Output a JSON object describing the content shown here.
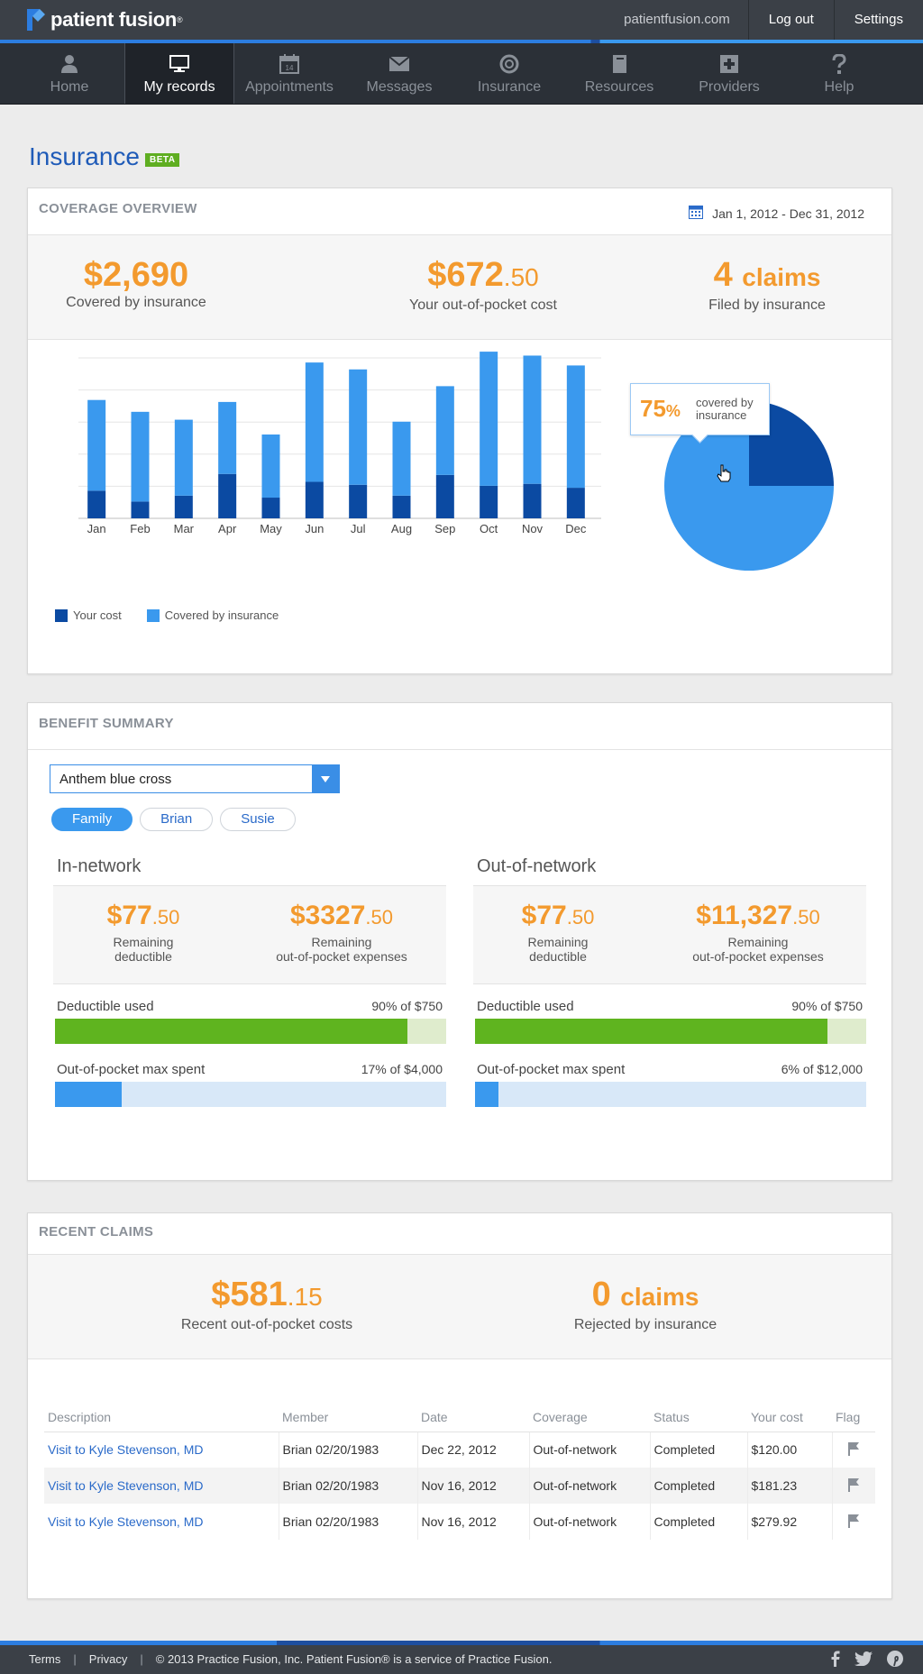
{
  "brand": {
    "name": "patient fusion",
    "reg": "®"
  },
  "top_links": {
    "site": "patientfusion.com",
    "logout": "Log out",
    "settings": "Settings"
  },
  "nav": {
    "items": [
      {
        "label": "Home",
        "icon": "user-icon"
      },
      {
        "label": "My records",
        "icon": "monitor-icon"
      },
      {
        "label": "Appointments",
        "icon": "calendar-icon",
        "icon_text": "14"
      },
      {
        "label": "Messages",
        "icon": "envelope-icon"
      },
      {
        "label": "Insurance",
        "icon": "lifebuoy-icon"
      },
      {
        "label": "Resources",
        "icon": "book-icon"
      },
      {
        "label": "Providers",
        "icon": "medical-cross-icon"
      },
      {
        "label": "Help",
        "icon": "question-icon"
      }
    ],
    "active": "My records"
  },
  "page": {
    "title": "Insurance",
    "badge": "BETA"
  },
  "coverage": {
    "title": "COVERAGE OVERVIEW",
    "date_range": "Jan 1, 2012 - Dec 31, 2012",
    "covered": {
      "value": "$2,690",
      "label": "Covered by insurance"
    },
    "oop": {
      "dollars": "$672",
      "cents": ".50",
      "label": "Your out-of-pocket cost"
    },
    "claims": {
      "count": "4",
      "unit": "claims",
      "label": "Filed by insurance"
    },
    "legend": {
      "your_cost": "Your cost",
      "covered": "Covered by insurance"
    },
    "pie": {
      "percent": "75",
      "sign": "%",
      "label_line1": "covered by",
      "label_line2": "insurance"
    }
  },
  "chart_data": [
    {
      "type": "bar",
      "stacked": true,
      "categories": [
        "Jan",
        "Feb",
        "Mar",
        "Apr",
        "May",
        "Jun",
        "Jul",
        "Aug",
        "Sep",
        "Oct",
        "Nov",
        "Dec"
      ],
      "series": [
        {
          "name": "Your cost",
          "color": "#0b4aa2",
          "values": [
            28,
            17,
            23,
            45,
            21,
            37,
            34,
            23,
            44,
            33,
            35,
            31
          ]
        },
        {
          "name": "Covered by insurance",
          "color": "#3a99ee",
          "values": [
            92,
            91,
            77,
            73,
            64,
            121,
            117,
            75,
            90,
            136,
            130,
            124
          ]
        }
      ],
      "grid": true,
      "legend": "bottom-left"
    },
    {
      "type": "pie",
      "slices": [
        {
          "name": "covered by insurance",
          "value": 75,
          "color": "#3a99ee"
        },
        {
          "name": "Your cost",
          "value": 25,
          "color": "#0b4aa2"
        }
      ]
    }
  ],
  "benefits": {
    "title": "BENEFIT SUMMARY",
    "plan": "Anthem blue cross",
    "members": [
      "Family",
      "Brian",
      "Susie"
    ],
    "active_member": "Family",
    "in_network": {
      "title": "In-network",
      "deductible": {
        "dollars": "$77",
        "cents": ".50",
        "label1": "Remaining",
        "label2": "deductible"
      },
      "oop": {
        "dollars": "$3327",
        "cents": ".50",
        "label1": "Remaining",
        "label2": "out-of-pocket expenses"
      },
      "deductible_used": {
        "label": "Deductible used",
        "value": "90% of $750",
        "fraction": 0.9
      },
      "oop_spent": {
        "label": "Out-of-pocket max spent",
        "value": "17% of $4,000",
        "fraction": 0.17
      }
    },
    "out_network": {
      "title": "Out-of-network",
      "deductible": {
        "dollars": "$77",
        "cents": ".50",
        "label1": "Remaining",
        "label2": "deductible"
      },
      "oop": {
        "dollars": "$11,327",
        "cents": ".50",
        "label1": "Remaining",
        "label2": "out-of-pocket expenses"
      },
      "deductible_used": {
        "label": "Deductible used",
        "value": "90% of $750",
        "fraction": 0.9
      },
      "oop_spent": {
        "label": "Out-of-pocket max spent",
        "value": "6% of $12,000",
        "fraction": 0.06
      }
    },
    "colors": {
      "deductible": "#5fb41f",
      "deductible_track": "#dfeccd",
      "oop": "#3a99ee",
      "oop_track": "#d8e8f8"
    }
  },
  "claims": {
    "title": "RECENT CLAIMS",
    "oop": {
      "dollars": "$581",
      "cents": ".15",
      "label": "Recent out-of-pocket costs"
    },
    "rejected": {
      "count": "0",
      "unit": "claims",
      "label": "Rejected by insurance"
    },
    "columns": [
      "Description",
      "Member",
      "Date",
      "Coverage",
      "Status",
      "Your cost",
      "Flag"
    ],
    "rows": [
      {
        "description": "Visit to Kyle Stevenson, MD",
        "member": "Brian 02/20/1983",
        "date": "Dec 22, 2012",
        "coverage": "Out-of-network",
        "status": "Completed",
        "cost": "$120.00",
        "flag": "flag-icon"
      },
      {
        "description": "Visit to Kyle Stevenson, MD",
        "member": "Brian 02/20/1983",
        "date": "Nov 16, 2012",
        "coverage": "Out-of-network",
        "status": "Completed",
        "cost": "$181.23",
        "flag": "flag-icon"
      },
      {
        "description": "Visit to Kyle Stevenson, MD",
        "member": "Brian 02/20/1983",
        "date": "Nov 16, 2012",
        "coverage": "Out-of-network",
        "status": "Completed",
        "cost": "$279.92",
        "flag": "flag-icon"
      }
    ]
  },
  "footer": {
    "terms": "Terms",
    "privacy": "Privacy",
    "copyright": "© 2013 Practice Fusion, Inc. Patient Fusion® is a service of Practice Fusion.",
    "social": [
      "facebook-icon",
      "twitter-icon",
      "pinterest-icon"
    ]
  }
}
